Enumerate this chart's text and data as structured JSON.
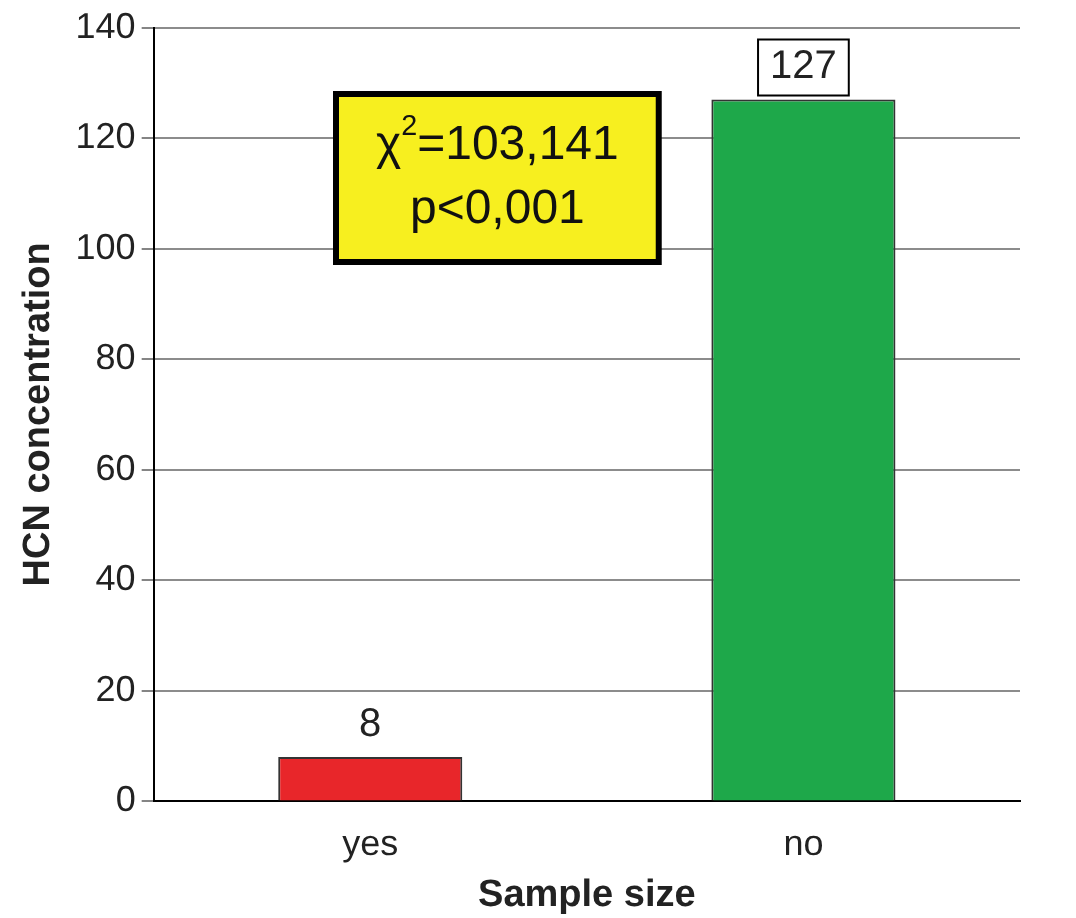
{
  "chart_data": {
    "type": "bar",
    "xlabel": "Sample size",
    "ylabel": "HCN concentration",
    "categories": [
      "yes",
      "no"
    ],
    "values": [
      8,
      127
    ],
    "colors": [
      "#e8262a",
      "#1ea84a"
    ],
    "ylim": [
      0,
      140
    ],
    "yticks": [
      0,
      20,
      40,
      60,
      80,
      100,
      120,
      140
    ],
    "grid": "y",
    "data_labels": true,
    "legend": false,
    "annotations": [
      "χ$^{2}$=103,141",
      "p<0,001"
    ]
  }
}
